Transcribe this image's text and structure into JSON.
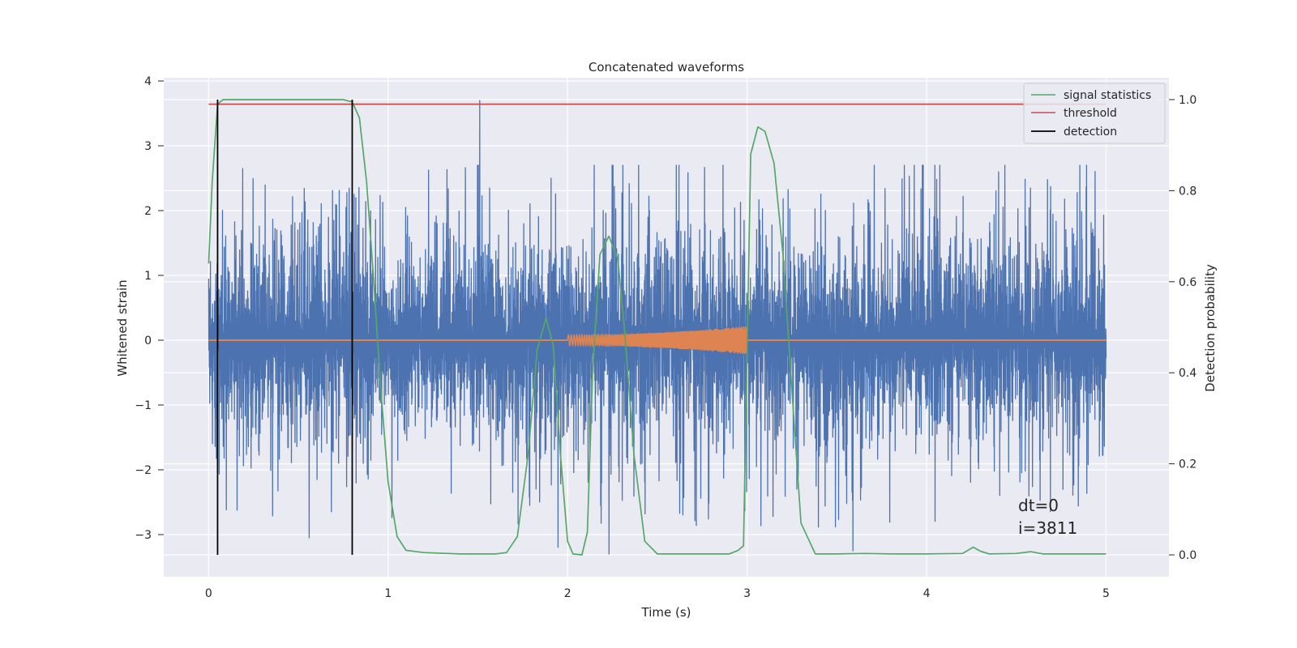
{
  "chart_data": {
    "type": "line",
    "title": "Concatenated waveforms",
    "xlabel": "Time (s)",
    "ylabel": "Whitened strain",
    "y2label": "Detection probability",
    "xlim": [
      -0.25,
      5.35
    ],
    "ylim": [
      -3.65,
      4.05
    ],
    "y2lim": [
      -0.048,
      1.048
    ],
    "xticks": [
      "0",
      "1",
      "2",
      "3",
      "4",
      "5"
    ],
    "yticks": [
      "−3",
      "−2",
      "−1",
      "0",
      "1",
      "2",
      "3",
      "4"
    ],
    "y2ticks": [
      "0.0",
      "0.2",
      "0.4",
      "0.6",
      "0.8",
      "1.0"
    ],
    "grid": true,
    "legend_position": "top-right",
    "legend": [
      "signal statistics",
      "threshold",
      "detection"
    ],
    "annotation": {
      "line1": "dt=0",
      "line2": "i=3811"
    },
    "series": [
      {
        "kind": "noise",
        "color": "#4c72b0",
        "description": "whitened strain, noise band roughly ±1.5 with spikes to ±3.5",
        "x_range": [
          0,
          5
        ],
        "envelope": [
          1.3,
          3.7
        ],
        "peaks": [
          {
            "x": 1.51,
            "y": 3.7
          },
          {
            "x": 0.81,
            "y": 2.25
          },
          {
            "x": 0.19,
            "y": 2.65
          },
          {
            "x": 2.23,
            "y": -3.3
          },
          {
            "x": 0.56,
            "y": -3.05
          }
        ]
      },
      {
        "kind": "chirp",
        "color": "#dd8452",
        "x_range": [
          2.0,
          3.0
        ],
        "amplitude": [
          0.08,
          0.22
        ],
        "flat_value": 0
      },
      {
        "name": "signal statistics",
        "axis": "right",
        "color": "#55a868",
        "x": [
          0,
          0.02,
          0.05,
          0.08,
          0.12,
          0.3,
          0.6,
          0.75,
          0.8,
          0.84,
          0.88,
          0.92,
          0.96,
          1.0,
          1.05,
          1.1,
          1.2,
          1.4,
          1.6,
          1.66,
          1.72,
          1.78,
          1.83,
          1.88,
          1.92,
          1.96,
          2.0,
          2.03,
          2.08,
          2.11,
          2.14,
          2.18,
          2.23,
          2.28,
          2.32,
          2.37,
          2.43,
          2.5,
          2.7,
          2.9,
          2.95,
          2.98,
          3.02,
          3.06,
          3.1,
          3.15,
          3.2,
          3.25,
          3.3,
          3.38,
          3.5,
          3.65,
          3.8,
          4.0,
          4.2,
          4.26,
          4.3,
          4.35,
          4.5,
          4.58,
          4.65,
          4.8,
          5.0
        ],
        "y": [
          0.64,
          0.82,
          0.99,
          1.0,
          1.0,
          1.0,
          1.0,
          1.0,
          0.995,
          0.96,
          0.82,
          0.6,
          0.36,
          0.16,
          0.04,
          0.01,
          0.005,
          0.002,
          0.002,
          0.005,
          0.04,
          0.22,
          0.45,
          0.52,
          0.46,
          0.22,
          0.03,
          0.002,
          0.0,
          0.05,
          0.41,
          0.66,
          0.7,
          0.65,
          0.48,
          0.22,
          0.03,
          0.002,
          0.002,
          0.002,
          0.01,
          0.02,
          0.88,
          0.94,
          0.93,
          0.86,
          0.66,
          0.36,
          0.07,
          0.002,
          0.002,
          0.003,
          0.002,
          0.002,
          0.003,
          0.017,
          0.008,
          0.002,
          0.003,
          0.007,
          0.002,
          0.002,
          0.002
        ]
      },
      {
        "name": "threshold",
        "axis": "right",
        "color": "#c44e52",
        "x": [
          0,
          5
        ],
        "y": [
          0.99,
          0.99
        ]
      },
      {
        "name": "detection",
        "axis": "right",
        "color": "#000000",
        "kind": "vlines",
        "x": [
          0.05,
          0.8
        ],
        "y_range": [
          0.0,
          1.0
        ]
      }
    ]
  }
}
